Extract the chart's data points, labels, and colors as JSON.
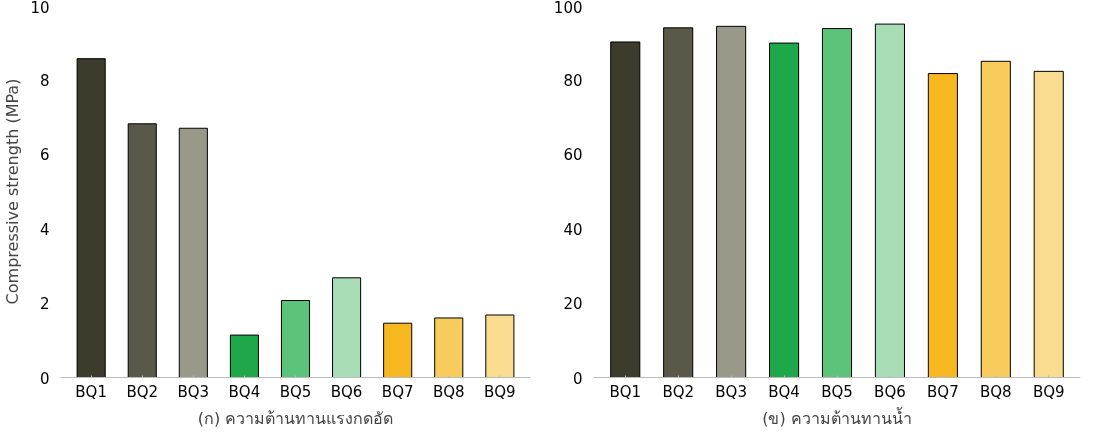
{
  "chart_data": [
    {
      "type": "bar",
      "xlabel": "(ก) ความต้านทานแรงกดอัด",
      "ylabel": "Compressive strength (MPa)",
      "categories": [
        "BQ1",
        "BQ2",
        "BQ3",
        "BQ4",
        "BQ5",
        "BQ6",
        "BQ7",
        "BQ8",
        "BQ9"
      ],
      "values": [
        8.57,
        6.82,
        6.7,
        1.14,
        2.07,
        2.68,
        1.46,
        1.6,
        1.68
      ],
      "colors": [
        "#3d3b2b",
        "#5a5848",
        "#9a9888",
        "#1fa84a",
        "#5cc47a",
        "#a8dcb4",
        "#f6b81e",
        "#f8cc5c",
        "#fadc90"
      ],
      "ylim": [
        0,
        10
      ],
      "yticks": [
        0,
        2,
        4,
        6,
        8,
        10
      ],
      "grid": false
    },
    {
      "type": "bar",
      "xlabel": "(ข) ความต้านทานน้ำ",
      "categories": [
        "BQ1",
        "BQ2",
        "BQ3",
        "BQ4",
        "BQ5",
        "BQ6",
        "BQ7",
        "BQ8",
        "BQ9"
      ],
      "values": [
        90.2,
        94,
        94.4,
        89.9,
        93.8,
        95,
        81.7,
        85,
        82.3
      ],
      "colors": [
        "#3d3b2b",
        "#5a5848",
        "#9a9888",
        "#1fa84a",
        "#5cc47a",
        "#a8dcb4",
        "#f6b81e",
        "#f8cc5c",
        "#fadc90"
      ],
      "ylim": [
        0,
        100
      ],
      "yticks": [
        0,
        20,
        40,
        60,
        80,
        100
      ],
      "grid": false
    }
  ]
}
